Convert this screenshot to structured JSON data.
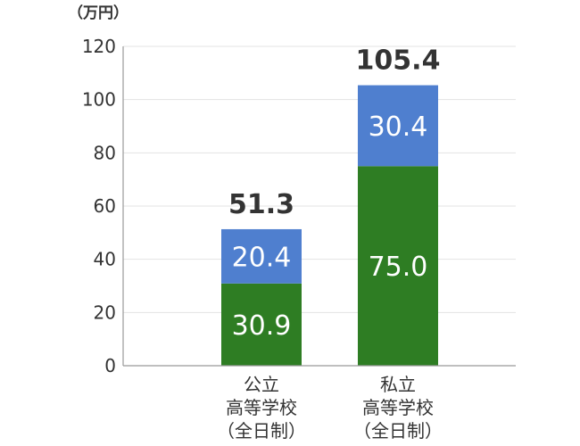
{
  "chart_data": {
    "type": "bar",
    "stacked": true,
    "unit_label": "（万円）",
    "categories": [
      {
        "lines": [
          "公立",
          "高等学校",
          "（全日制）"
        ]
      },
      {
        "lines": [
          "私立",
          "高等学校",
          "（全日制）"
        ]
      }
    ],
    "series": [
      {
        "values": [
          30.9,
          75.0
        ],
        "value_labels": [
          "30.9",
          "75.0"
        ],
        "color": "#2e7d23"
      },
      {
        "values": [
          20.4,
          30.4
        ],
        "value_labels": [
          "20.4",
          "30.4"
        ],
        "color": "#4f7fcf"
      }
    ],
    "totals": [
      51.3,
      105.4
    ],
    "total_labels": [
      "51.3",
      "105.4"
    ],
    "ylim": [
      0,
      120
    ],
    "yticks": [
      0,
      20,
      40,
      60,
      80,
      100,
      120
    ],
    "grid": true,
    "title": "",
    "xlabel": "",
    "ylabel": ""
  }
}
